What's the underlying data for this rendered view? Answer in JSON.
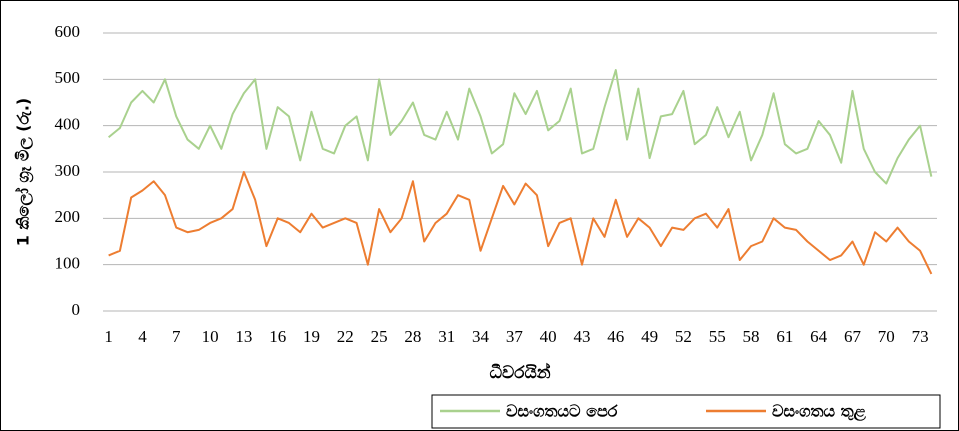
{
  "chart_data": {
    "type": "line",
    "y_label": "1 කිලෝ ග්‍රෑ මිල (රු.)",
    "x_label": "ධීවරයින්",
    "x": [
      1,
      2,
      3,
      4,
      5,
      6,
      7,
      8,
      9,
      10,
      11,
      12,
      13,
      14,
      15,
      16,
      17,
      18,
      19,
      20,
      21,
      22,
      23,
      24,
      25,
      26,
      27,
      28,
      29,
      30,
      31,
      32,
      33,
      34,
      35,
      36,
      37,
      38,
      39,
      40,
      41,
      42,
      43,
      44,
      45,
      46,
      47,
      48,
      49,
      50,
      51,
      52,
      53,
      54,
      55,
      56,
      57,
      58,
      59,
      60,
      61,
      62,
      63,
      64,
      65,
      66,
      67,
      68,
      69,
      70,
      71,
      72,
      73,
      74
    ],
    "xlim": [
      0.5,
      74.5
    ],
    "xticks": [
      1,
      4,
      7,
      10,
      13,
      16,
      19,
      22,
      25,
      28,
      31,
      34,
      37,
      40,
      43,
      46,
      49,
      52,
      55,
      58,
      61,
      64,
      67,
      70,
      73
    ],
    "ylim": [
      0,
      600
    ],
    "yticks": [
      0,
      100,
      200,
      300,
      400,
      500,
      600
    ],
    "grid": true,
    "legend": "bottom-right",
    "series": [
      {
        "name": "වසංගතයට පෙර",
        "color": "#a9d18e",
        "values": [
          375,
          395,
          450,
          475,
          450,
          500,
          420,
          370,
          350,
          400,
          350,
          425,
          470,
          500,
          350,
          440,
          420,
          325,
          430,
          350,
          340,
          400,
          420,
          325,
          500,
          380,
          410,
          450,
          380,
          370,
          430,
          370,
          480,
          420,
          340,
          360,
          470,
          425,
          475,
          390,
          410,
          480,
          340,
          350,
          440,
          520,
          370,
          480,
          330,
          420,
          425,
          475,
          360,
          380,
          440,
          375,
          430,
          325,
          380,
          470,
          360,
          340,
          350,
          410,
          380,
          320,
          475,
          350,
          300,
          275,
          330,
          370,
          400,
          290
        ]
      },
      {
        "name": "වසංගතය තුළ",
        "color": "#ed7d31",
        "values": [
          120,
          130,
          245,
          260,
          280,
          250,
          180,
          170,
          175,
          190,
          200,
          220,
          300,
          240,
          140,
          200,
          190,
          170,
          210,
          180,
          190,
          200,
          190,
          100,
          220,
          170,
          200,
          280,
          150,
          190,
          210,
          250,
          240,
          130,
          200,
          270,
          230,
          275,
          250,
          140,
          190,
          200,
          100,
          200,
          160,
          240,
          160,
          200,
          180,
          140,
          180,
          175,
          200,
          210,
          180,
          220,
          110,
          140,
          150,
          200,
          180,
          175,
          150,
          130,
          110,
          120,
          150,
          100,
          170,
          150,
          180,
          150,
          130,
          80
        ]
      }
    ]
  }
}
